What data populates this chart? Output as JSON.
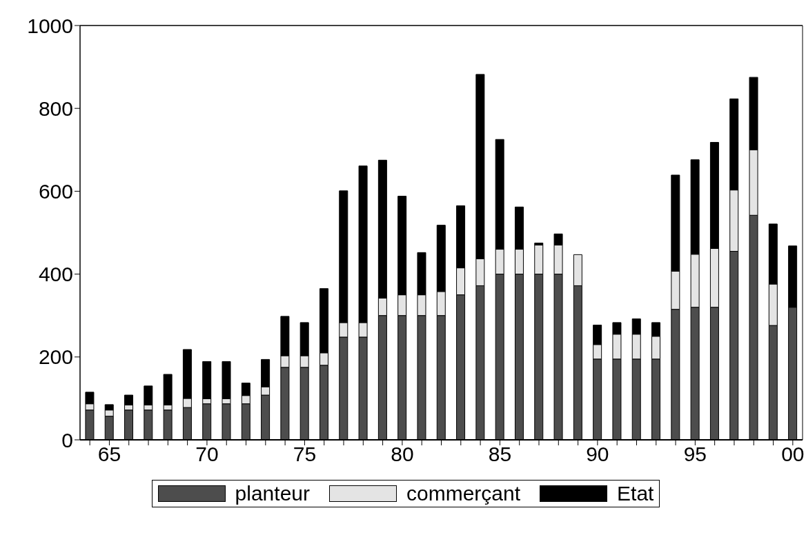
{
  "chart_data": {
    "type": "bar",
    "stacked": true,
    "categories": [
      null,
      "65",
      null,
      null,
      null,
      null,
      "70",
      null,
      null,
      null,
      null,
      "75",
      null,
      null,
      null,
      null,
      "80",
      null,
      null,
      null,
      null,
      "85",
      null,
      null,
      null,
      null,
      "90",
      null,
      null,
      null,
      null,
      "95",
      null,
      null,
      null,
      null,
      "00"
    ],
    "series": [
      {
        "name": "planteur",
        "color": "#4d4d4d",
        "values": [
          72,
          57,
          72,
          72,
          72,
          78,
          87,
          87,
          87,
          108,
          175,
          175,
          180,
          248,
          248,
          300,
          300,
          300,
          300,
          350,
          372,
          400,
          400,
          400,
          400,
          372,
          195,
          195,
          195,
          195,
          315,
          320,
          320,
          455,
          542,
          276,
          320
        ]
      },
      {
        "name": "commerçant",
        "color": "#e4e4e4",
        "values": [
          15,
          15,
          12,
          12,
          12,
          22,
          12,
          12,
          20,
          20,
          28,
          28,
          30,
          35,
          35,
          42,
          50,
          50,
          58,
          65,
          65,
          60,
          60,
          70,
          70,
          75,
          35,
          60,
          60,
          55,
          92,
          128,
          142,
          148,
          158,
          100,
          0
        ]
      },
      {
        "name": "Etat",
        "color": "#000000",
        "values": [
          28,
          13,
          24,
          46,
          74,
          118,
          90,
          90,
          30,
          66,
          95,
          80,
          155,
          318,
          378,
          333,
          238,
          102,
          160,
          150,
          445,
          265,
          102,
          5,
          27,
          0,
          47,
          28,
          37,
          33,
          232,
          228,
          256,
          220,
          175,
          145,
          148
        ]
      }
    ],
    "ylim": [
      0,
      1000
    ],
    "yticks": [
      0,
      200,
      400,
      600,
      800,
      1000
    ],
    "legend": "bottom"
  }
}
